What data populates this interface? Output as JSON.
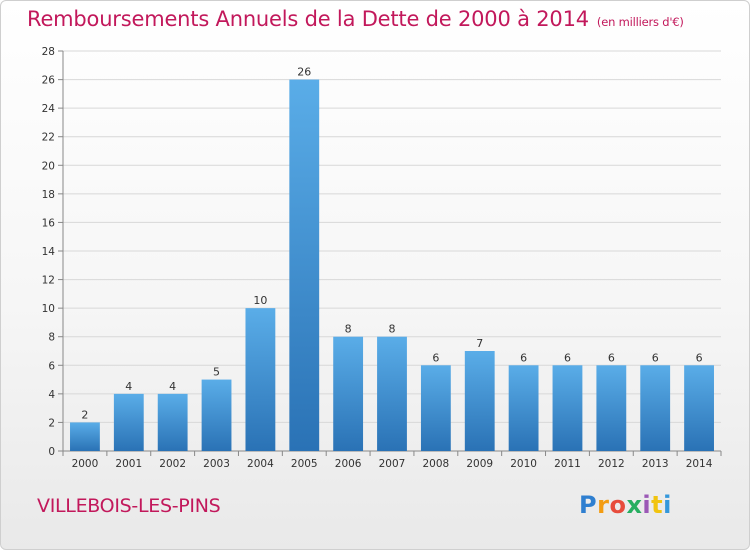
{
  "header": {
    "title": "Remboursements Annuels de la Dette de 2000 à 2014",
    "unit": "(en milliers d'€)"
  },
  "footer": {
    "commune": "VILLEBOIS-LES-PINS",
    "logo": "Proxiti"
  },
  "colors": {
    "title": "#c2185b",
    "bar_top": "#5aade8",
    "bar_bottom": "#2a72b5",
    "grid": "#d8d8d8"
  },
  "chart_data": {
    "type": "bar",
    "title": "Remboursements Annuels de la Dette de 2000 à 2014",
    "xlabel": "",
    "ylabel": "",
    "categories": [
      "2000",
      "2001",
      "2002",
      "2003",
      "2004",
      "2005",
      "2006",
      "2007",
      "2008",
      "2009",
      "2010",
      "2011",
      "2012",
      "2013",
      "2014"
    ],
    "values": [
      2,
      4,
      4,
      5,
      10,
      26,
      8,
      8,
      6,
      7,
      6,
      6,
      6,
      6,
      6
    ],
    "ylim": [
      0,
      28
    ],
    "yticks": [
      0,
      2,
      4,
      6,
      8,
      10,
      12,
      14,
      16,
      18,
      20,
      22,
      24,
      26,
      28
    ],
    "grid": true
  }
}
